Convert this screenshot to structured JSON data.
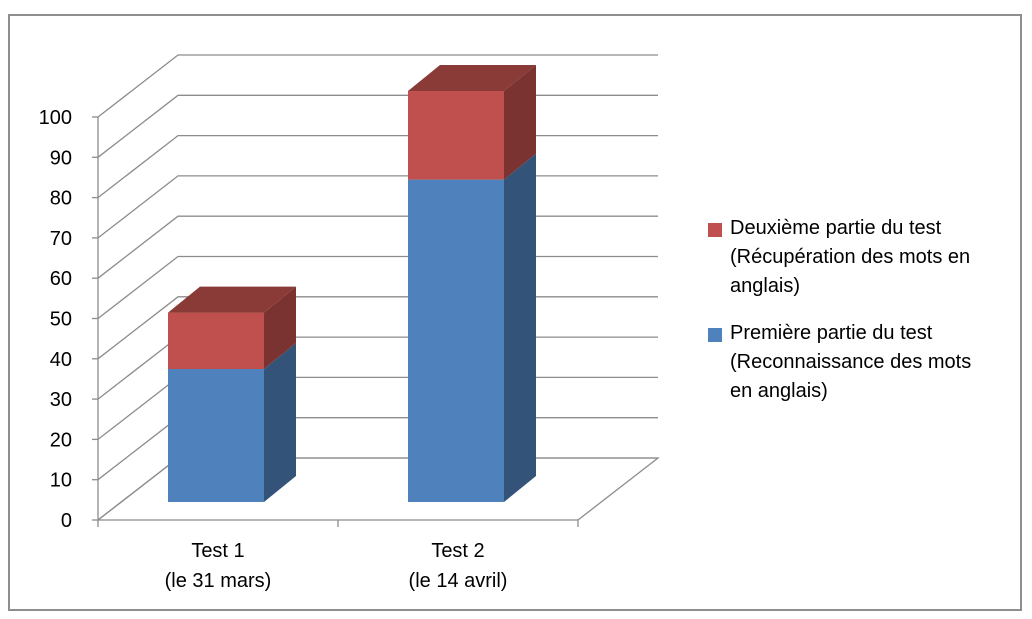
{
  "chart_data": {
    "type": "bar",
    "stacked": true,
    "style": "3d-column",
    "categories": [
      [
        "Test 1",
        "(le 31 mars)"
      ],
      [
        "Test 2",
        "(le 14 avril)"
      ]
    ],
    "series": [
      {
        "name": "Première partie du test (Reconnaissance des mots en anglais)",
        "values": [
          33,
          80
        ],
        "color": "#4F81BD"
      },
      {
        "name": "Deuxième partie du test (Récupération des mots en anglais)",
        "values": [
          14,
          22
        ],
        "color": "#C0504D"
      }
    ],
    "ylim": [
      0,
      100
    ],
    "yticks": [
      0,
      10,
      20,
      30,
      40,
      50,
      60,
      70,
      80,
      90,
      100
    ],
    "grid": true,
    "legend": "right"
  },
  "legend": {
    "items": [
      {
        "lines": [
          "Deuxième partie du test",
          "(Récupération des mots en",
          "anglais)"
        ],
        "color": "#C0504D"
      },
      {
        "lines": [
          "Première partie du test",
          "(Reconnaissance des mots",
          "en anglais)"
        ],
        "color": "#4F81BD"
      }
    ]
  }
}
